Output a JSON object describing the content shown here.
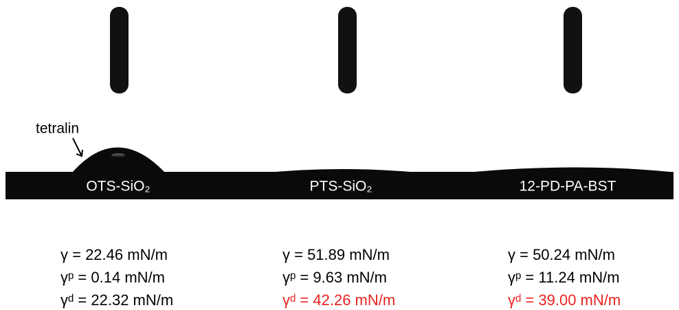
{
  "annotation": "tetralin",
  "panels": [
    {
      "substrate": "OTS-SiO₂",
      "lines": [
        {
          "text": "γ = 22.46 mN/m",
          "color": "#000000"
        },
        {
          "text": "γᵖ = 0.14 mN/m",
          "color": "#000000"
        },
        {
          "text": "γᵈ = 22.32 mN/m",
          "color": "#000000"
        }
      ]
    },
    {
      "substrate": "PTS-SiO₂",
      "lines": [
        {
          "text": "γ = 51.89 mN/m",
          "color": "#000000"
        },
        {
          "text": "γᵖ = 9.63 mN/m",
          "color": "#000000"
        },
        {
          "text": "γᵈ = 42.26 mN/m",
          "color": "#e8231f"
        }
      ]
    },
    {
      "substrate": "12-PD-PA-BST",
      "lines": [
        {
          "text": "γ = 50.24 mN/m",
          "color": "#000000"
        },
        {
          "text": "γᵖ = 11.24 mN/m",
          "color": "#000000"
        },
        {
          "text": "γᵈ = 39.00 mN/m",
          "color": "#e8231f"
        }
      ]
    }
  ]
}
